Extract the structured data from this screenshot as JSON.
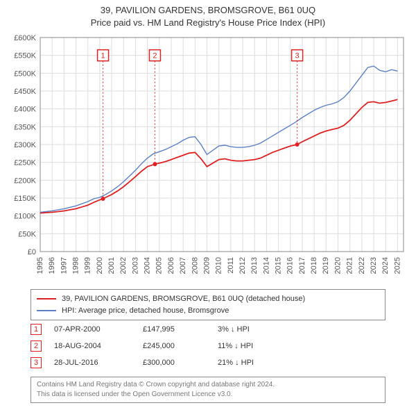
{
  "title": {
    "line1": "39, PAVILION GARDENS, BROMSGROVE, B61 0UQ",
    "line2": "Price paid vs. HM Land Registry's House Price Index (HPI)",
    "fontsize": 13,
    "color": "#333333"
  },
  "chart": {
    "type": "line",
    "background_color": "#ffffff",
    "grid_color": "#dddddd",
    "border_color": "#888888",
    "xlim": [
      1995,
      2025.5
    ],
    "ylim": [
      0,
      600000
    ],
    "ytick_step": 50000,
    "yticks": [
      "£0",
      "£50K",
      "£100K",
      "£150K",
      "£200K",
      "£250K",
      "£300K",
      "£350K",
      "£400K",
      "£450K",
      "£500K",
      "£550K",
      "£600K"
    ],
    "xticks": [
      "1995",
      "1996",
      "1997",
      "1998",
      "1999",
      "2000",
      "2001",
      "2002",
      "2003",
      "2004",
      "2005",
      "2006",
      "2007",
      "2008",
      "2009",
      "2010",
      "2011",
      "2012",
      "2013",
      "2014",
      "2015",
      "2016",
      "2017",
      "2018",
      "2019",
      "2020",
      "2021",
      "2022",
      "2023",
      "2024",
      "2025"
    ],
    "axis_label_fontsize": 11,
    "axis_label_color": "#555555",
    "series": [
      {
        "name": "price_paid",
        "label": "39, PAVILION GARDENS, BROMSGROVE, B61 0UQ (detached house)",
        "color": "#e02020",
        "line_width": 1.8,
        "points": [
          [
            1995.0,
            108000
          ],
          [
            1995.5,
            109000
          ],
          [
            1996.0,
            110000
          ],
          [
            1996.5,
            112000
          ],
          [
            1997.0,
            114000
          ],
          [
            1997.5,
            117000
          ],
          [
            1998.0,
            120000
          ],
          [
            1998.5,
            125000
          ],
          [
            1999.0,
            130000
          ],
          [
            1999.5,
            138000
          ],
          [
            2000.0,
            145000
          ],
          [
            2000.27,
            147995
          ],
          [
            2000.5,
            152000
          ],
          [
            2001.0,
            160000
          ],
          [
            2001.5,
            170000
          ],
          [
            2002.0,
            182000
          ],
          [
            2002.5,
            196000
          ],
          [
            2003.0,
            210000
          ],
          [
            2003.5,
            225000
          ],
          [
            2004.0,
            238000
          ],
          [
            2004.63,
            245000
          ],
          [
            2005.0,
            248000
          ],
          [
            2005.5,
            252000
          ],
          [
            2006.0,
            258000
          ],
          [
            2006.5,
            264000
          ],
          [
            2007.0,
            270000
          ],
          [
            2007.5,
            276000
          ],
          [
            2008.0,
            278000
          ],
          [
            2008.5,
            260000
          ],
          [
            2009.0,
            238000
          ],
          [
            2009.5,
            248000
          ],
          [
            2010.0,
            258000
          ],
          [
            2010.5,
            260000
          ],
          [
            2011.0,
            256000
          ],
          [
            2011.5,
            254000
          ],
          [
            2012.0,
            254000
          ],
          [
            2012.5,
            256000
          ],
          [
            2013.0,
            258000
          ],
          [
            2013.5,
            262000
          ],
          [
            2014.0,
            270000
          ],
          [
            2014.5,
            278000
          ],
          [
            2015.0,
            284000
          ],
          [
            2015.5,
            290000
          ],
          [
            2016.0,
            296000
          ],
          [
            2016.57,
            300000
          ],
          [
            2017.0,
            308000
          ],
          [
            2017.5,
            316000
          ],
          [
            2018.0,
            324000
          ],
          [
            2018.5,
            332000
          ],
          [
            2019.0,
            338000
          ],
          [
            2019.5,
            342000
          ],
          [
            2020.0,
            346000
          ],
          [
            2020.5,
            354000
          ],
          [
            2021.0,
            368000
          ],
          [
            2021.5,
            386000
          ],
          [
            2022.0,
            404000
          ],
          [
            2022.5,
            418000
          ],
          [
            2023.0,
            420000
          ],
          [
            2023.5,
            416000
          ],
          [
            2024.0,
            418000
          ],
          [
            2024.5,
            422000
          ],
          [
            2025.0,
            426000
          ]
        ]
      },
      {
        "name": "hpi",
        "label": "HPI: Average price, detached house, Bromsgrove",
        "color": "#5b7fc7",
        "line_width": 1.4,
        "points": [
          [
            1995.0,
            110000
          ],
          [
            1995.5,
            112000
          ],
          [
            1996.0,
            114000
          ],
          [
            1996.5,
            117000
          ],
          [
            1997.0,
            120000
          ],
          [
            1997.5,
            124000
          ],
          [
            1998.0,
            128000
          ],
          [
            1998.5,
            134000
          ],
          [
            1999.0,
            140000
          ],
          [
            1999.5,
            148000
          ],
          [
            2000.0,
            152000
          ],
          [
            2000.5,
            160000
          ],
          [
            2001.0,
            170000
          ],
          [
            2001.5,
            182000
          ],
          [
            2002.0,
            196000
          ],
          [
            2002.5,
            212000
          ],
          [
            2003.0,
            228000
          ],
          [
            2003.5,
            246000
          ],
          [
            2004.0,
            262000
          ],
          [
            2004.5,
            274000
          ],
          [
            2005.0,
            280000
          ],
          [
            2005.5,
            286000
          ],
          [
            2006.0,
            294000
          ],
          [
            2006.5,
            302000
          ],
          [
            2007.0,
            312000
          ],
          [
            2007.5,
            320000
          ],
          [
            2008.0,
            322000
          ],
          [
            2008.5,
            300000
          ],
          [
            2009.0,
            272000
          ],
          [
            2009.5,
            284000
          ],
          [
            2010.0,
            296000
          ],
          [
            2010.5,
            298000
          ],
          [
            2011.0,
            294000
          ],
          [
            2011.5,
            292000
          ],
          [
            2012.0,
            292000
          ],
          [
            2012.5,
            294000
          ],
          [
            2013.0,
            298000
          ],
          [
            2013.5,
            304000
          ],
          [
            2014.0,
            314000
          ],
          [
            2014.5,
            324000
          ],
          [
            2015.0,
            334000
          ],
          [
            2015.5,
            344000
          ],
          [
            2016.0,
            354000
          ],
          [
            2016.5,
            364000
          ],
          [
            2017.0,
            376000
          ],
          [
            2017.5,
            386000
          ],
          [
            2018.0,
            396000
          ],
          [
            2018.5,
            404000
          ],
          [
            2019.0,
            410000
          ],
          [
            2019.5,
            414000
          ],
          [
            2020.0,
            420000
          ],
          [
            2020.5,
            432000
          ],
          [
            2021.0,
            450000
          ],
          [
            2021.5,
            472000
          ],
          [
            2022.0,
            494000
          ],
          [
            2022.5,
            516000
          ],
          [
            2023.0,
            520000
          ],
          [
            2023.5,
            508000
          ],
          [
            2024.0,
            504000
          ],
          [
            2024.5,
            510000
          ],
          [
            2025.0,
            506000
          ]
        ]
      }
    ],
    "markers": [
      {
        "n": "1",
        "x": 2000.27,
        "y_box": 550000,
        "dot_y": 147995
      },
      {
        "n": "2",
        "x": 2004.63,
        "y_box": 550000,
        "dot_y": 245000
      },
      {
        "n": "3",
        "x": 2016.57,
        "y_box": 550000,
        "dot_y": 300000
      }
    ],
    "marker_color": "#e02020",
    "dot_radius": 3
  },
  "legend": {
    "border_color": "#888888",
    "fontsize": 11
  },
  "transactions": [
    {
      "n": "1",
      "date": "07-APR-2000",
      "price": "£147,995",
      "diff": "3% ↓ HPI"
    },
    {
      "n": "2",
      "date": "18-AUG-2004",
      "price": "£245,000",
      "diff": "11% ↓ HPI"
    },
    {
      "n": "3",
      "date": "28-JUL-2016",
      "price": "£300,000",
      "diff": "21% ↓ HPI"
    }
  ],
  "footer": {
    "line1": "Contains HM Land Registry data © Crown copyright and database right 2024.",
    "line2": "This data is licensed under the Open Government Licence v3.0.",
    "color": "#777777",
    "fontsize": 10
  }
}
